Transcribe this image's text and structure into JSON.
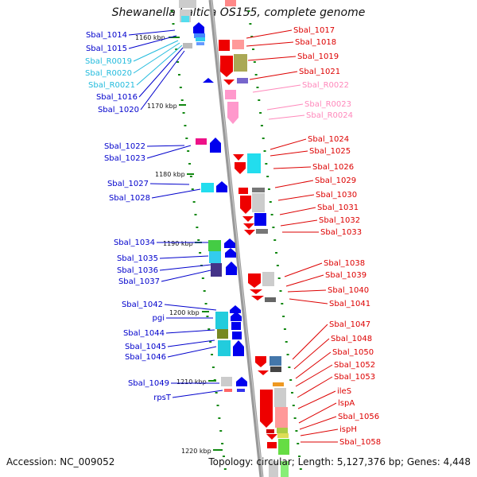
{
  "title": "Shewanella baltica OS155, complete genome",
  "accession": "Accession: NC_009052",
  "summary": "Topology: circular; Length: 5,127,376 bp; Genes: 4,448",
  "colors": {
    "left_gene": "#0000cc",
    "left_rna": "#22bbdd",
    "right_gene": "#dd0000",
    "right_rna": "#ff88bb",
    "backbone": "#888888",
    "tick": "#118811"
  },
  "coordinates": [
    {
      "label": "1160 kbp"
    },
    {
      "label": "1170 kbp"
    },
    {
      "label": "1180 kbp"
    },
    {
      "label": "1190 kbp"
    },
    {
      "label": "1200 kbp"
    },
    {
      "label": "1210 kbp"
    },
    {
      "label": "1220 kbp"
    }
  ],
  "left_labels": [
    {
      "text": "Sbal_1014",
      "kind": "gene"
    },
    {
      "text": "Sbal_1015",
      "kind": "gene"
    },
    {
      "text": "Sbal_R0019",
      "kind": "rna"
    },
    {
      "text": "Sbal_R0020",
      "kind": "rna"
    },
    {
      "text": "Sbal_R0021",
      "kind": "rna"
    },
    {
      "text": "Sbal_1016",
      "kind": "gene"
    },
    {
      "text": "Sbal_1020",
      "kind": "gene"
    },
    {
      "text": "Sbal_1022",
      "kind": "gene"
    },
    {
      "text": "Sbal_1023",
      "kind": "gene"
    },
    {
      "text": "Sbal_1027",
      "kind": "gene"
    },
    {
      "text": "Sbal_1028",
      "kind": "gene"
    },
    {
      "text": "Sbal_1034",
      "kind": "gene"
    },
    {
      "text": "Sbal_1035",
      "kind": "gene"
    },
    {
      "text": "Sbal_1036",
      "kind": "gene"
    },
    {
      "text": "Sbal_1037",
      "kind": "gene"
    },
    {
      "text": "Sbal_1042",
      "kind": "gene"
    },
    {
      "text": "pgi",
      "kind": "gene"
    },
    {
      "text": "Sbal_1044",
      "kind": "gene"
    },
    {
      "text": "Sbal_1045",
      "kind": "gene"
    },
    {
      "text": "Sbal_1046",
      "kind": "gene"
    },
    {
      "text": "Sbal_1049",
      "kind": "gene"
    },
    {
      "text": "rpsT",
      "kind": "gene"
    }
  ],
  "right_labels": [
    {
      "text": "Sbal_1017",
      "kind": "gene"
    },
    {
      "text": "Sbal_1018",
      "kind": "gene"
    },
    {
      "text": "Sbal_1019",
      "kind": "gene"
    },
    {
      "text": "Sbal_1021",
      "kind": "gene"
    },
    {
      "text": "Sbal_R0022",
      "kind": "rna"
    },
    {
      "text": "Sbal_R0023",
      "kind": "rna"
    },
    {
      "text": "Sbal_R0024",
      "kind": "rna"
    },
    {
      "text": "Sbal_1024",
      "kind": "gene"
    },
    {
      "text": "Sbal_1025",
      "kind": "gene"
    },
    {
      "text": "Sbal_1026",
      "kind": "gene"
    },
    {
      "text": "Sbal_1029",
      "kind": "gene"
    },
    {
      "text": "Sbal_1030",
      "kind": "gene"
    },
    {
      "text": "Sbal_1031",
      "kind": "gene"
    },
    {
      "text": "Sbal_1032",
      "kind": "gene"
    },
    {
      "text": "Sbal_1033",
      "kind": "gene"
    },
    {
      "text": "Sbal_1038",
      "kind": "gene"
    },
    {
      "text": "Sbal_1039",
      "kind": "gene"
    },
    {
      "text": "Sbal_1040",
      "kind": "gene"
    },
    {
      "text": "Sbal_1041",
      "kind": "gene"
    },
    {
      "text": "Sbal_1047",
      "kind": "gene"
    },
    {
      "text": "Sbal_1048",
      "kind": "gene"
    },
    {
      "text": "Sbal_1050",
      "kind": "gene"
    },
    {
      "text": "Sbal_1052",
      "kind": "gene"
    },
    {
      "text": "Sbal_1053",
      "kind": "gene"
    },
    {
      "text": "ileS",
      "kind": "gene"
    },
    {
      "text": "lspA",
      "kind": "gene"
    },
    {
      "text": "Sbal_1056",
      "kind": "gene"
    },
    {
      "text": "ispH",
      "kind": "gene"
    },
    {
      "text": "Sbal_1058",
      "kind": "gene"
    }
  ]
}
